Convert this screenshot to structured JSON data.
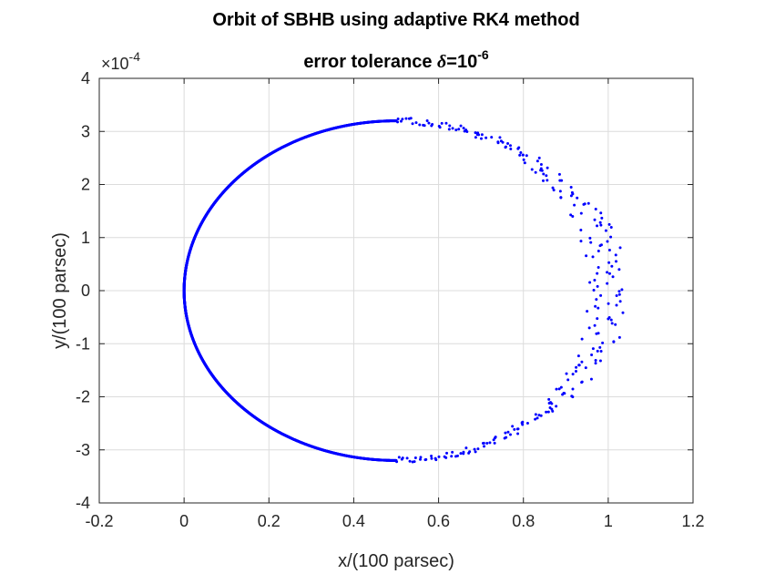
{
  "chart_data": {
    "type": "scatter",
    "title_line1": "Orbit of SBHB using adaptive RK4 method",
    "title_line2_prefix": "error tolerance ",
    "title_line2_symbol": "δ",
    "title_line2_eq": "=10",
    "title_line2_exp": "-6",
    "xlabel": "x/(100 parsec)",
    "ylabel": "y/(100 parsec)",
    "y_multiplier_base": "×10",
    "y_multiplier_exp": "-4",
    "xlim": [
      -0.2,
      1.2
    ],
    "ylim": [
      -4,
      4
    ],
    "x_ticks": [
      "-0.2",
      "0",
      "0.2",
      "0.4",
      "0.6",
      "0.8",
      "1",
      "1.2"
    ],
    "y_ticks": [
      "-4",
      "-3",
      "-2",
      "-1",
      "0",
      "1",
      "2",
      "3",
      "4"
    ],
    "y_scale_note": "y values in units of 1e-4",
    "grid": true,
    "marker_color": "#0000ff",
    "orbit": {
      "shape": "ellipse",
      "x_center": 0.5,
      "x_semi_axis": 0.5,
      "y_semi_axis": 3.2,
      "dense_point_count": 2400,
      "scattered_point_count": 260
    }
  }
}
